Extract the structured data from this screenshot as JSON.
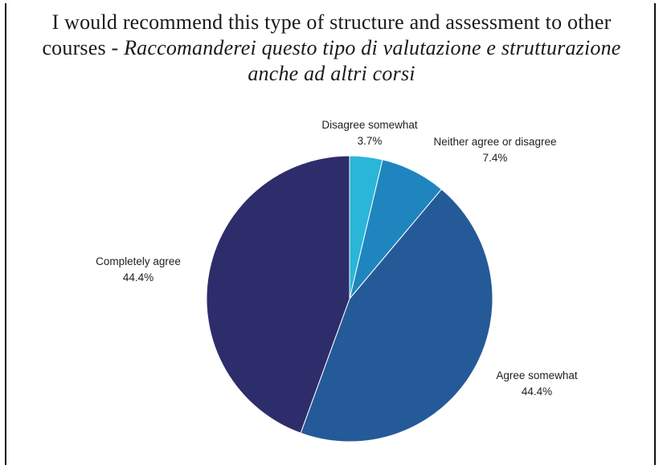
{
  "chart_data": {
    "type": "pie",
    "title": "I would recommend this type of structure and assessment to other courses - ",
    "title_italic": "Raccomanderei questo tipo di valutazione e strutturazione anche ad altri corsi",
    "slices": [
      {
        "label": "Disagree somewhat",
        "value": 3.7,
        "value_label": "3.7%",
        "color": "#29b6d8"
      },
      {
        "label": "Neither agree or disagree",
        "value": 7.4,
        "value_label": "7.4%",
        "color": "#1f85bf"
      },
      {
        "label": "Agree somewhat",
        "value": 44.4,
        "value_label": "44.4%",
        "color": "#255a98"
      },
      {
        "label": "Completely agree",
        "value": 44.4,
        "value_label": "44.4%",
        "color": "#2e2d6b"
      }
    ]
  }
}
